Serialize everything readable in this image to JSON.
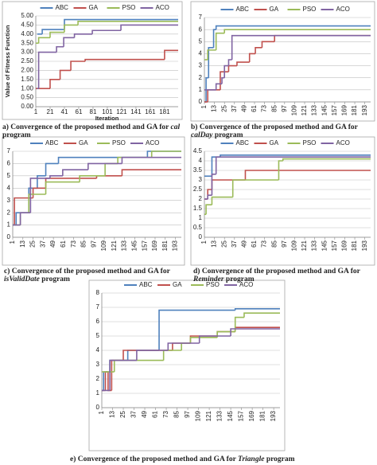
{
  "chart_data": [
    {
      "type": "line",
      "caption": {
        "prefix": "a) Convergence of the proposed method and GA for",
        "program": "cal",
        "suffix": "program"
      },
      "ylabel": "Value of Fitness Function",
      "xlabel": "Iteration",
      "step": true,
      "grid": true,
      "legend": "top",
      "xlim": [
        1,
        200
      ],
      "xticks": [
        1,
        21,
        41,
        61,
        81,
        101,
        121,
        141,
        161,
        181
      ],
      "ylim": [
        0,
        5
      ],
      "yticks": [
        {
          "value": 0,
          "label": "0.00"
        },
        {
          "value": 0.5,
          "label": "0.50"
        },
        {
          "value": 1,
          "label": "1.00"
        },
        {
          "value": 1.5,
          "label": "1.50"
        },
        {
          "value": 2,
          "label": "2.00"
        },
        {
          "value": 2.5,
          "label": "2.50"
        },
        {
          "value": 3,
          "label": "3.00"
        },
        {
          "value": 3.5,
          "label": "3.50"
        },
        {
          "value": 4,
          "label": "4.00"
        },
        {
          "value": 4.5,
          "label": "4.50"
        },
        {
          "value": 5,
          "label": "5.00"
        }
      ],
      "series": [
        {
          "name": "ABC",
          "color": "#4f81bd",
          "x": [
            3,
            10,
            41
          ],
          "values": [
            4.0,
            4.25,
            4.8
          ]
        },
        {
          "name": "GA",
          "color": "#c0504d",
          "x": [
            1,
            21,
            35,
            50,
            70,
            181
          ],
          "values": [
            1.0,
            1.5,
            2.0,
            2.5,
            2.6,
            3.1
          ]
        },
        {
          "name": "PSO",
          "color": "#9bbb59",
          "x": [
            1,
            5,
            21,
            41,
            60
          ],
          "values": [
            3.5,
            3.8,
            4.1,
            4.5,
            4.7
          ]
        },
        {
          "name": "ACO",
          "color": "#8064a2",
          "x": [
            3,
            5,
            30,
            40,
            55,
            80,
            120
          ],
          "values": [
            1.0,
            3.0,
            3.3,
            3.8,
            4.0,
            4.2,
            4.5
          ]
        }
      ]
    },
    {
      "type": "line",
      "caption": {
        "prefix": "b) Convergence of the proposed method and GA for",
        "program": "calDay",
        "suffix": "program"
      },
      "step": true,
      "grid": true,
      "legend": "top",
      "xlim": [
        1,
        200
      ],
      "xticks": [
        1,
        13,
        25,
        37,
        49,
        61,
        73,
        85,
        97,
        109,
        121,
        133,
        145,
        157,
        169,
        181,
        193
      ],
      "ylim": [
        0,
        7
      ],
      "yticks": [
        0,
        1,
        2,
        3,
        4,
        5,
        6,
        7
      ],
      "series": [
        {
          "name": "ABC",
          "color": "#4f81bd",
          "x": [
            1,
            3,
            6,
            12,
            15
          ],
          "values": [
            0,
            2,
            4.5,
            6,
            6.3
          ]
        },
        {
          "name": "GA",
          "color": "#c0504d",
          "x": [
            1,
            5,
            20,
            30,
            40,
            55,
            62,
            70,
            85
          ],
          "values": [
            0,
            1,
            2.5,
            3,
            3.3,
            4,
            4.5,
            5,
            5.5
          ]
        },
        {
          "name": "PSO",
          "color": "#9bbb59",
          "x": [
            1,
            5,
            15,
            25
          ],
          "values": [
            3.5,
            4.3,
            5.7,
            6
          ]
        },
        {
          "name": "ACO",
          "color": "#8064a2",
          "x": [
            1,
            15,
            22,
            25,
            30,
            34
          ],
          "values": [
            1,
            1.5,
            2,
            3,
            3.5,
            5.5
          ]
        }
      ]
    },
    {
      "type": "line",
      "caption": {
        "prefix": "c) Convergence of the proposed method and GA for",
        "program": "isValidDate",
        "suffix": "program"
      },
      "step": true,
      "grid": true,
      "legend": "top",
      "xlim": [
        1,
        200
      ],
      "xticks": [
        1,
        13,
        25,
        37,
        49,
        61,
        73,
        85,
        97,
        109,
        121,
        133,
        145,
        157,
        169,
        181,
        193
      ],
      "ylim": [
        0,
        7
      ],
      "yticks": [
        0,
        1,
        2,
        3,
        4,
        5,
        6,
        7
      ],
      "series": [
        {
          "name": "ABC",
          "color": "#4f81bd",
          "x": [
            1,
            5,
            20,
            30,
            40,
            55,
            160
          ],
          "values": [
            1,
            2,
            4,
            5,
            6,
            6.5,
            7
          ]
        },
        {
          "name": "GA",
          "color": "#c0504d",
          "x": [
            1,
            3,
            25,
            40,
            100,
            130
          ],
          "values": [
            1,
            3.2,
            4,
            4.8,
            5,
            5.5
          ]
        },
        {
          "name": "PSO",
          "color": "#9bbb59",
          "x": [
            1,
            10,
            20,
            40,
            80,
            110,
            125,
            165
          ],
          "values": [
            1,
            2,
            3.5,
            4.5,
            5,
            6,
            6.5,
            7
          ]
        },
        {
          "name": "ACO",
          "color": "#8064a2",
          "x": [
            1,
            10,
            22,
            45,
            60,
            90,
            130
          ],
          "values": [
            1,
            2,
            4.8,
            5,
            5.5,
            6,
            6.5
          ]
        }
      ]
    },
    {
      "type": "line",
      "caption": {
        "prefix": "d) Convergence of the proposed method and GA for",
        "program": "Reminder",
        "suffix": "program"
      },
      "step": true,
      "grid": true,
      "legend": "top",
      "xlim": [
        1,
        200
      ],
      "xticks": [
        1,
        13,
        25,
        37,
        49,
        61,
        73,
        85,
        97,
        109,
        121,
        133,
        145,
        157,
        169,
        181,
        193
      ],
      "ylim": [
        0,
        4.5
      ],
      "yticks": [
        0,
        0.5,
        1,
        1.5,
        2,
        2.5,
        3,
        3.5,
        4,
        4.5
      ],
      "series": [
        {
          "name": "ABC",
          "color": "#4f81bd",
          "x": [
            1,
            10,
            20
          ],
          "values": [
            3.2,
            4.2,
            4.3
          ]
        },
        {
          "name": "GA",
          "color": "#c0504d",
          "x": [
            1,
            5,
            10,
            50
          ],
          "values": [
            2,
            2.5,
            3,
            3.5
          ]
        },
        {
          "name": "PSO",
          "color": "#9bbb59",
          "x": [
            1,
            3,
            10,
            35,
            90,
            95
          ],
          "values": [
            1.2,
            1.7,
            2.1,
            3,
            4,
            4.1
          ]
        },
        {
          "name": "ACO",
          "color": "#8064a2",
          "x": [
            1,
            5,
            10,
            15
          ],
          "values": [
            2,
            2.2,
            3.3,
            4.2
          ]
        }
      ]
    },
    {
      "type": "line",
      "caption": {
        "prefix": "e) Convergence of the proposed method and GA for",
        "program": "Triangle",
        "suffix": "program"
      },
      "step": true,
      "grid": true,
      "legend": "top",
      "xlim": [
        1,
        200
      ],
      "xticks": [
        1,
        13,
        25,
        37,
        49,
        61,
        73,
        85,
        97,
        109,
        121,
        133,
        145,
        157,
        169,
        181,
        193
      ],
      "ylim": [
        0,
        8
      ],
      "yticks": [
        0,
        1,
        2,
        3,
        4,
        5,
        6,
        7,
        8
      ],
      "series": [
        {
          "name": "ABC",
          "color": "#4f81bd",
          "x": [
            1,
            3,
            10,
            30,
            65,
            150
          ],
          "values": [
            1.2,
            2.5,
            3.3,
            4,
            6.8,
            6.9
          ]
        },
        {
          "name": "GA",
          "color": "#c0504d",
          "x": [
            1,
            5,
            8,
            12,
            25,
            80,
            100,
            130,
            150
          ],
          "values": [
            1.2,
            2.5,
            1.2,
            3.3,
            4,
            4.5,
            5,
            5.3,
            5.6
          ]
        },
        {
          "name": "PSO",
          "color": "#9bbb59",
          "x": [
            1,
            15,
            70,
            90,
            100,
            130,
            150,
            160
          ],
          "values": [
            2.5,
            3.3,
            4,
            4.5,
            4.9,
            5.3,
            6.3,
            6.6
          ]
        },
        {
          "name": "ACO",
          "color": "#8064a2",
          "x": [
            1,
            10,
            40,
            75,
            110,
            145
          ],
          "values": [
            1.2,
            3.3,
            4,
            4.5,
            5,
            5.5
          ]
        }
      ]
    }
  ]
}
